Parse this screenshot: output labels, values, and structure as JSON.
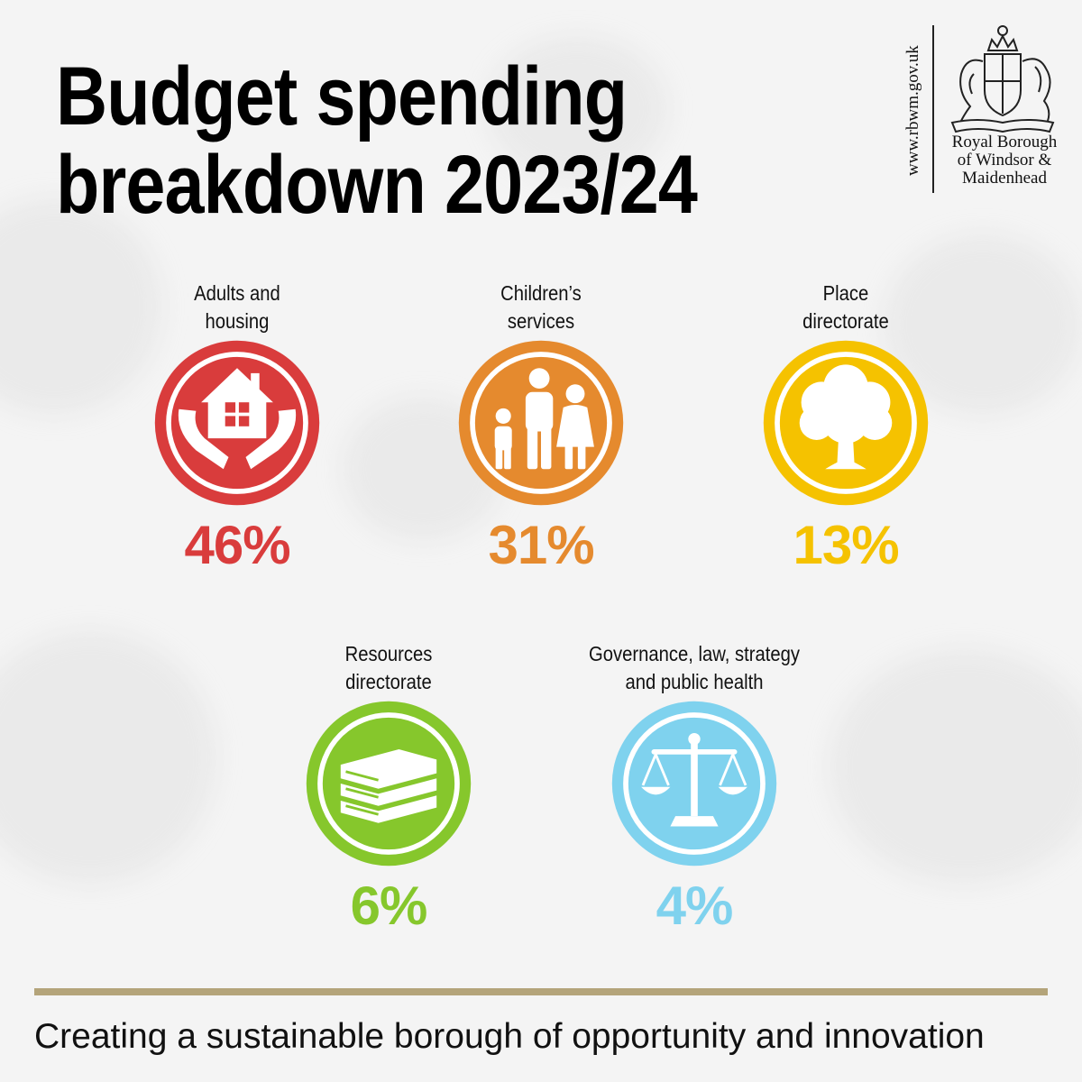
{
  "header": {
    "title_line1": "Budget spending",
    "title_line2": "breakdown 2023/24",
    "url": "www.rbwm.gov.uk",
    "org_line1": "Royal Borough",
    "org_line2": "of Windsor &",
    "org_line3": "Maidenhead"
  },
  "colors": {
    "adults": "#d93c3c",
    "children": "#e58a2e",
    "place": "#f5c200",
    "resources": "#86c72c",
    "governance": "#7fd2ee",
    "footer_rule": "#b4a47a"
  },
  "items": [
    {
      "label_line1": "Adults and",
      "label_line2": "housing",
      "percent": "46%",
      "icon": "house-in-hands-icon"
    },
    {
      "label_line1": "Children’s",
      "label_line2": "services",
      "percent": "31%",
      "icon": "family-icon"
    },
    {
      "label_line1": "Place",
      "label_line2": "directorate",
      "percent": "13%",
      "icon": "tree-icon"
    },
    {
      "label_line1": "Resources",
      "label_line2": "directorate",
      "percent": "6%",
      "icon": "books-icon"
    },
    {
      "label_line1": "Governance, law, strategy",
      "label_line2": "and public health",
      "percent": "4%",
      "icon": "scales-icon"
    }
  ],
  "footer": {
    "tagline": "Creating a sustainable borough of opportunity and innovation"
  }
}
